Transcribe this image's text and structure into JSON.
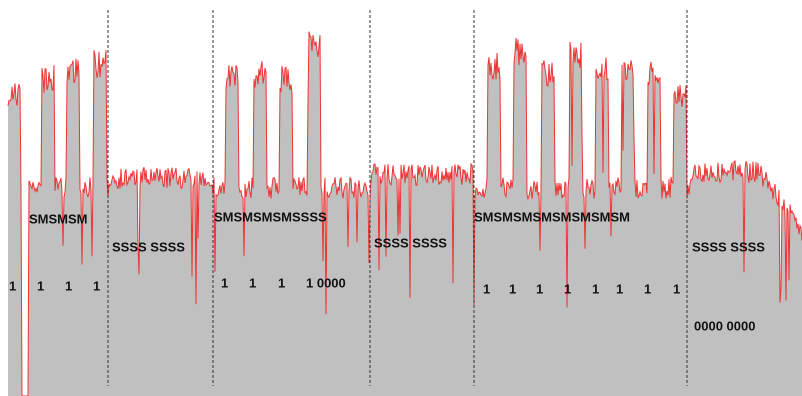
{
  "labels": [
    "SMSMSM",
    "SSSS SSSS",
    "1",
    "1",
    "1",
    "1",
    "SMSMSMSMSSSS",
    "1",
    "1",
    "1",
    "1 0000",
    "SSSS SSSS",
    "SMSMSMSMSMSMSMSM",
    "1",
    "1",
    "1",
    "1",
    "1",
    "1",
    "1",
    "1",
    "SSSS SSSS",
    "0000 0000"
  ]
}
